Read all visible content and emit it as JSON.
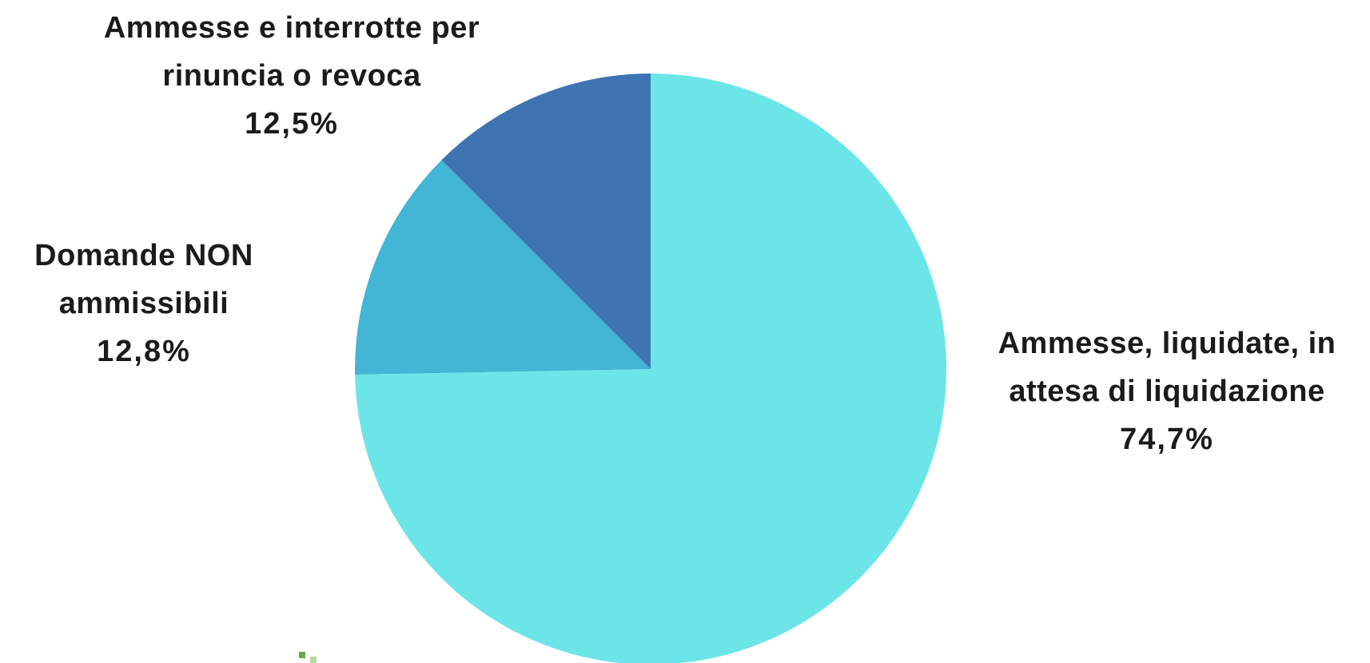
{
  "chart_data": {
    "type": "pie",
    "start_angle_deg": 90,
    "direction": "clockwise",
    "slices": [
      {
        "label": "Ammesse, liquidate, in attesa di liquidazione",
        "label_lines": [
          "Ammesse, liquidate, in",
          "attesa di liquidazione"
        ],
        "value": 74.7,
        "value_label": "74,7%",
        "color": "#6ce5e8"
      },
      {
        "label": "Domande NON ammissibili",
        "label_lines": [
          "Domande NON",
          "ammissibili"
        ],
        "value": 12.8,
        "value_label": "12,8%",
        "color": "#43b6d5"
      },
      {
        "label": "Ammesse e interrotte per rinuncia o revoca",
        "label_lines": [
          "Ammesse e interrotte per",
          "rinuncia o revoca"
        ],
        "value": 12.5,
        "value_label": "12,5%",
        "color": "#3f74b2"
      }
    ],
    "legend": "none",
    "data_labels": "outside"
  },
  "logo_colors": [
    "#6aa84f",
    "#b6d7a8"
  ]
}
